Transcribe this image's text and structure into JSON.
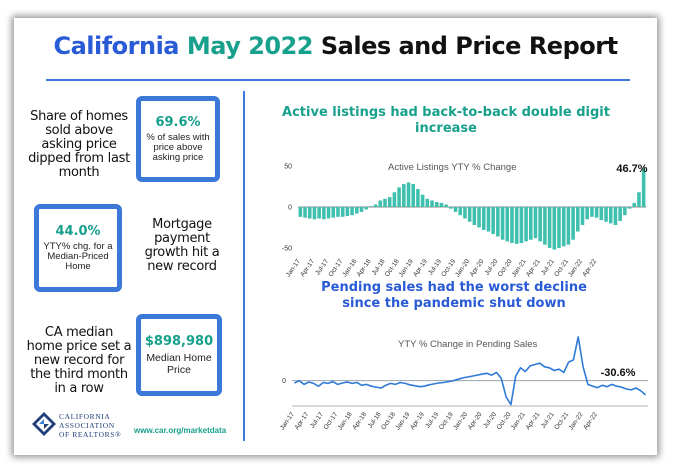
{
  "title": {
    "part1": "California",
    "part2": "May 2022",
    "part3": "Sales and Price Report"
  },
  "colors": {
    "title_blue": "#2a5bd7",
    "title_teal": "#17a08c",
    "rule_blue": "#3b78d8",
    "bar_teal": "#3fbfad",
    "line_blue": "#2f7ad6"
  },
  "stats": [
    {
      "text": "Share of homes sold above asking price dipped from last month",
      "value": "69.6%",
      "caption": "% of sales with price above asking price"
    },
    {
      "text": "Mortgage payment growth hit a new record",
      "value": "44.0%",
      "caption": "YTY% chg. for a Median-Priced Home"
    },
    {
      "text": "CA median home price set a new record for the third month in a row",
      "value": "$898,980",
      "caption": "Median Home Price"
    }
  ],
  "footer": {
    "logo_line1": "CALIFORNIA",
    "logo_line2": "ASSOCIATION",
    "logo_line3": "OF REALTORS®",
    "url": "www.car.org/marketdata"
  },
  "chart_data": [
    {
      "type": "bar",
      "title": "Active listings had back-to-back double digit increase",
      "inner_label": "Active Listings YTY % Change",
      "callout": "46.7%",
      "ylim": [
        -55,
        55
      ],
      "yticks": [
        "50",
        "0",
        "-50"
      ],
      "ytick_values": [
        50,
        0,
        -50
      ],
      "x_tick_labels": [
        "Jan-17",
        "Apr-17",
        "Jul-17",
        "Oct-17",
        "Jan-18",
        "Apr-18",
        "Jul-18",
        "Oct-18",
        "Jan-19",
        "Apr-19",
        "Jul-19",
        "Oct-19",
        "Jan-20",
        "Apr-20",
        "Jul-20",
        "Oct-20",
        "Jan-21",
        "Apr-21",
        "Jul-21",
        "Oct-21",
        "Jan-22",
        "Apr-22"
      ],
      "values": [
        -12,
        -13,
        -14,
        -15,
        -14,
        -15,
        -14,
        -13,
        -12,
        -12,
        -11,
        -10,
        -8,
        -6,
        -3,
        1,
        3,
        8,
        10,
        12,
        18,
        24,
        28,
        30,
        28,
        22,
        15,
        10,
        8,
        6,
        5,
        3,
        -2,
        -6,
        -10,
        -14,
        -18,
        -22,
        -25,
        -28,
        -30,
        -33,
        -36,
        -40,
        -42,
        -44,
        -45,
        -44,
        -42,
        -40,
        -38,
        -42,
        -46,
        -50,
        -52,
        -50,
        -48,
        -46,
        -40,
        -30,
        -22,
        -15,
        -12,
        -13,
        -16,
        -18,
        -20,
        -22,
        -17,
        -10,
        -2,
        5,
        18,
        47
      ]
    },
    {
      "type": "line",
      "title": "Pending sales had the worst decline since the pandemic shut down",
      "inner_label": "YTY % Change in Pending Sales",
      "callout": "-30.6%",
      "ylim": [
        -55,
        110
      ],
      "yticks": [
        "0"
      ],
      "ytick_values": [
        0
      ],
      "x_tick_labels": [
        "Jan-17",
        "Apr-17",
        "Jul-17",
        "Oct-17",
        "Jan-18",
        "Apr-18",
        "Jul-18",
        "Oct-18",
        "Jan-19",
        "Apr-19",
        "Jul-19",
        "Oct-19",
        "Jan-20",
        "Apr-20",
        "Jul-20",
        "Oct-20",
        "Jan-21",
        "Apr-21",
        "Jul-21",
        "Oct-21",
        "Jan-22",
        "Apr-22"
      ],
      "values": [
        -5,
        0,
        -8,
        -3,
        -6,
        -12,
        -4,
        -6,
        -2,
        -8,
        -5,
        -3,
        -6,
        -4,
        -10,
        -8,
        -12,
        -14,
        -16,
        -10,
        -6,
        -8,
        -4,
        -6,
        -9,
        -11,
        -13,
        -12,
        -9,
        -7,
        -5,
        -4,
        -2,
        0,
        3,
        6,
        8,
        10,
        12,
        14,
        16,
        12,
        18,
        5,
        -35,
        -52,
        10,
        28,
        20,
        32,
        35,
        38,
        30,
        28,
        22,
        25,
        18,
        40,
        45,
        95,
        30,
        -8,
        -12,
        -15,
        -10,
        -13,
        -8,
        -12,
        -14,
        -18,
        -20,
        -16,
        -22,
        -31
      ]
    }
  ]
}
